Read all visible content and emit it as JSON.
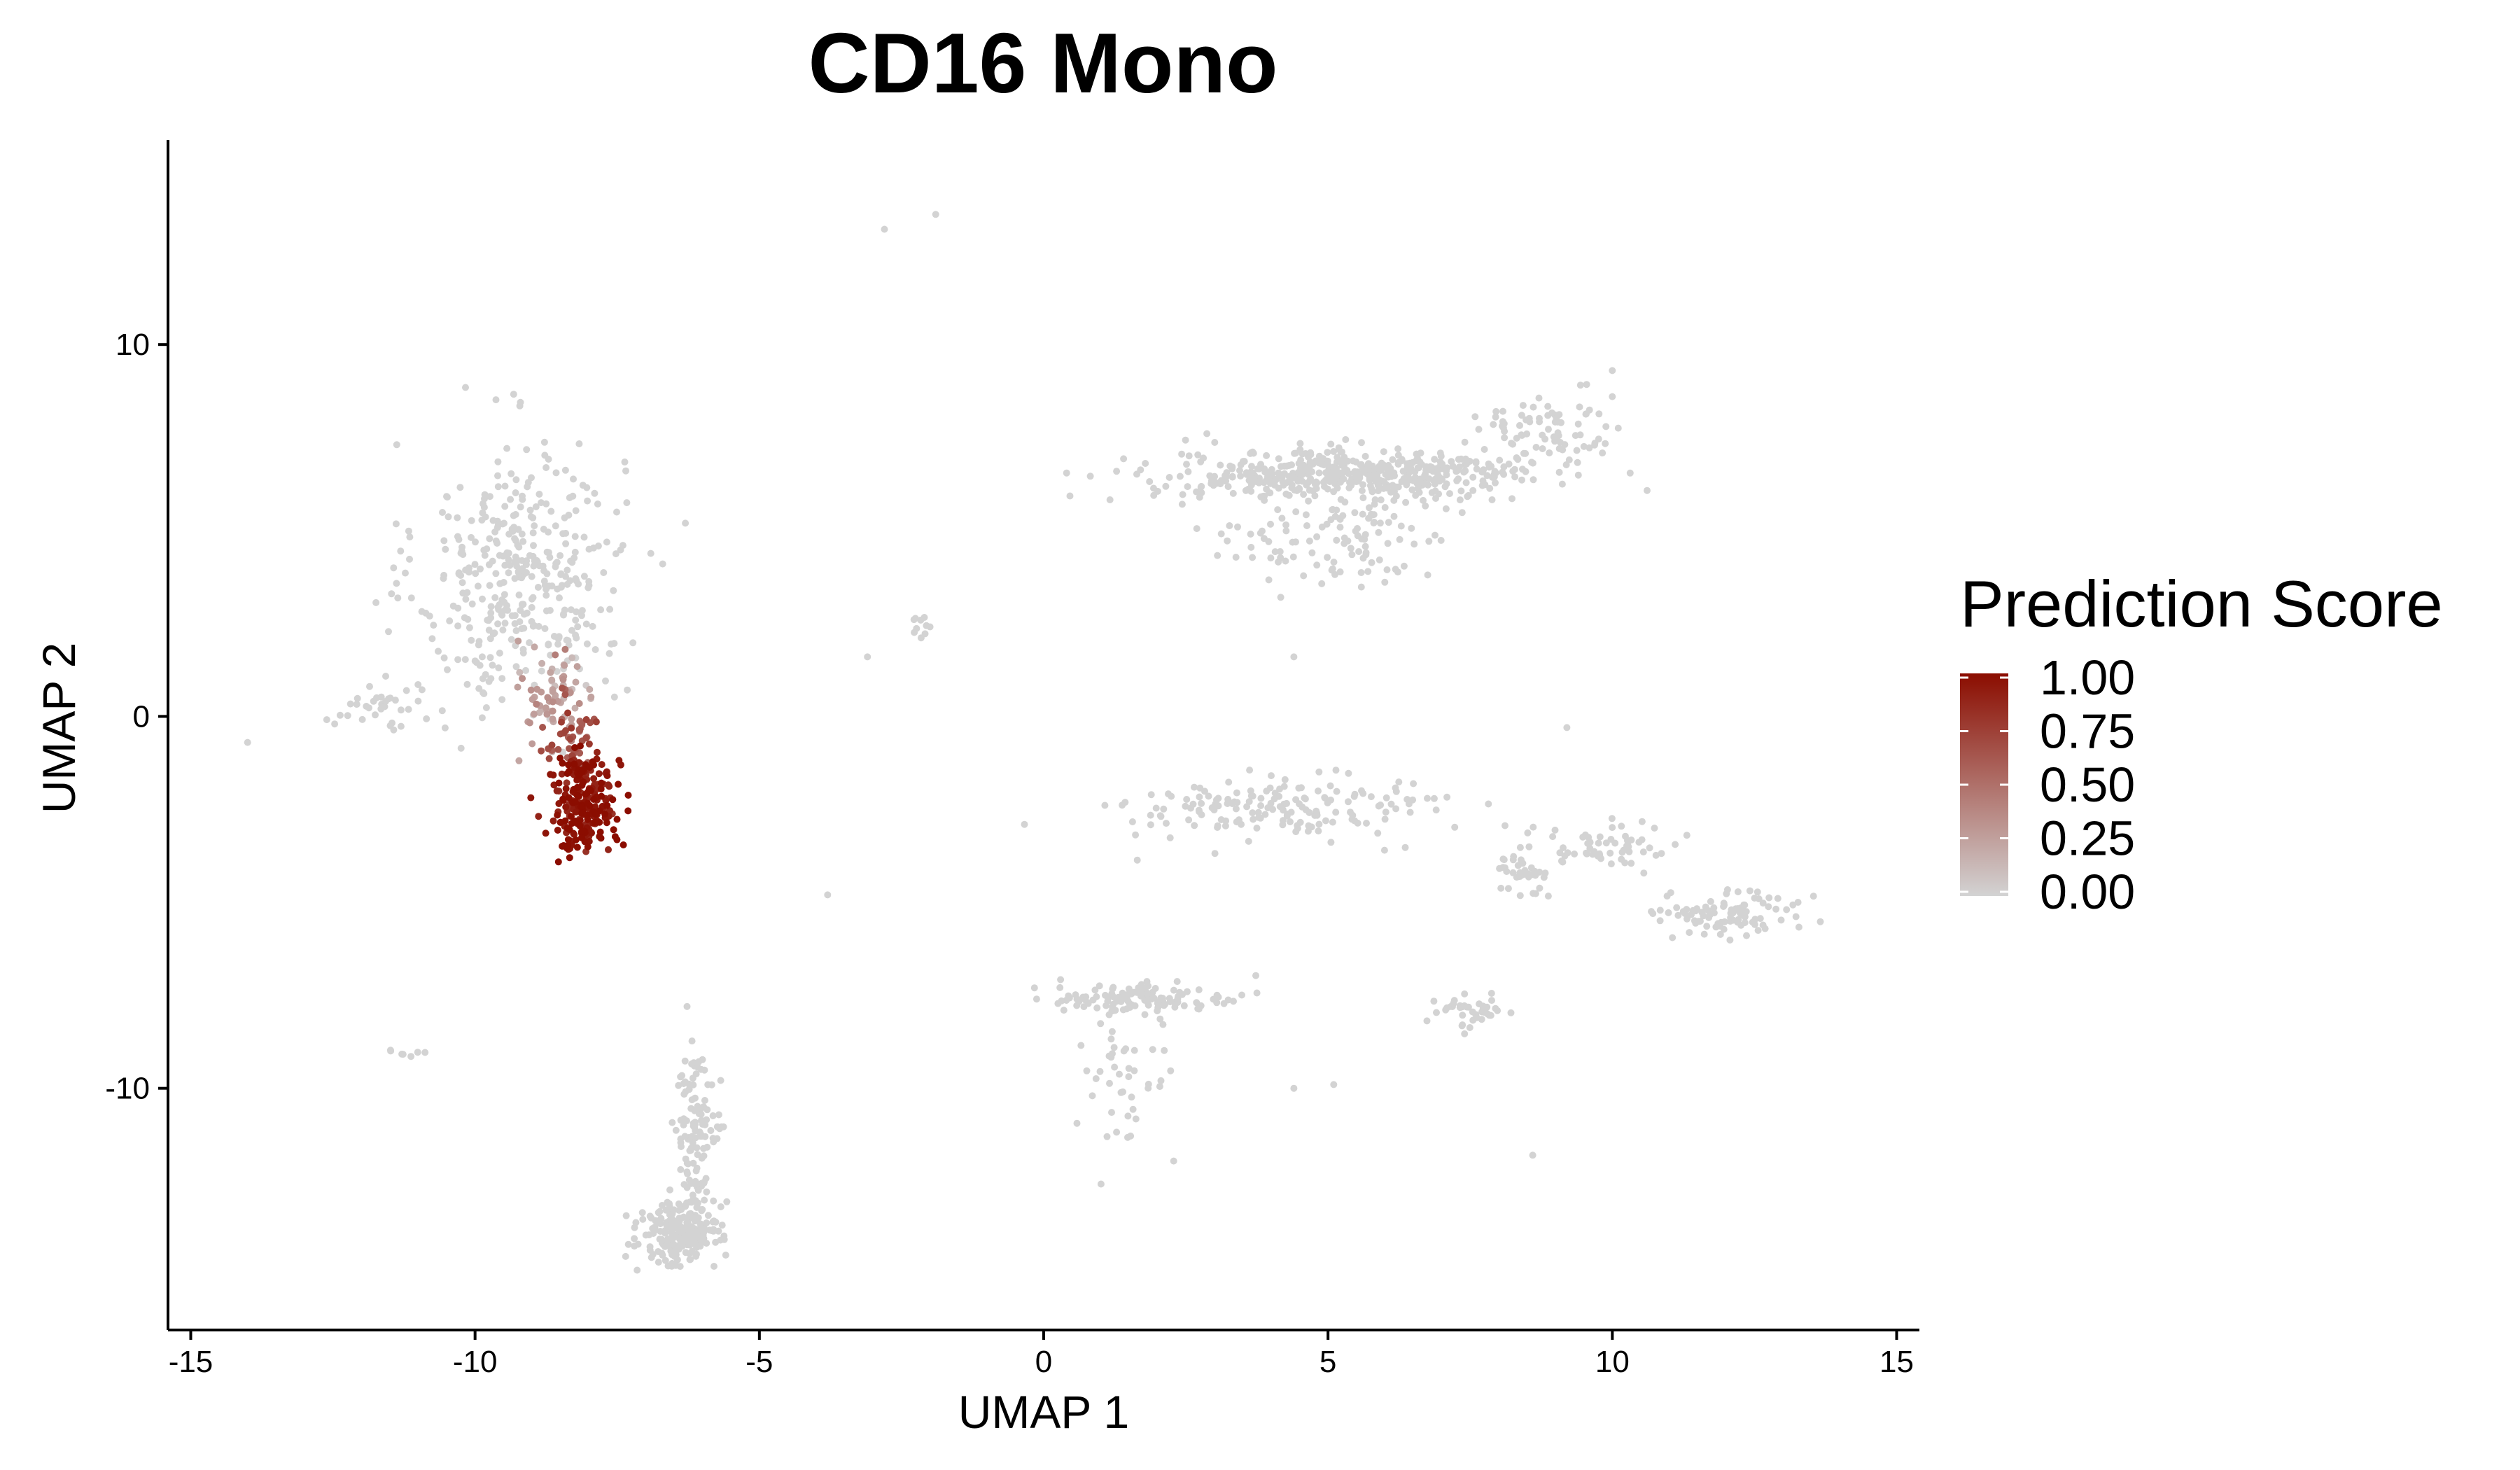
{
  "chart_data": {
    "type": "scatter",
    "title": "CD16 Mono",
    "xlabel": "UMAP 1",
    "ylabel": "UMAP 2",
    "xlim": [
      -15.4,
      15.4
    ],
    "ylim": [
      -16.5,
      15.5
    ],
    "xticks": [
      -15,
      -10,
      -5,
      0,
      5,
      10,
      15
    ],
    "xtick_labels": [
      "-15",
      "-10",
      "-5",
      "0",
      "5",
      "10",
      "15"
    ],
    "yticks": [
      10,
      0,
      -10
    ],
    "ytick_labels": [
      "10",
      "0",
      "-10"
    ],
    "grid": false,
    "legend": {
      "title": "Prediction Score",
      "placement": "right",
      "breaks": [
        1.0,
        0.75,
        0.5,
        0.25,
        0.0
      ],
      "labels": [
        "1.00",
        "0.75",
        "0.50",
        "0.25",
        "0.00"
      ],
      "low_color": "#d3d3d3",
      "high_color": "#8b0d00"
    },
    "colors": {
      "low": "#d3d3d3",
      "high": "#8b0d00",
      "axis": "#000000"
    },
    "series": [
      {
        "clusters": [
          {
            "center": [
              -9.2,
              3.8
            ],
            "spread": [
              0.9,
              1.8
            ],
            "n": 380,
            "score": 0
          },
          {
            "center": [
              -8.6,
              0.7
            ],
            "spread": [
              0.35,
              0.7
            ],
            "n": 70,
            "score": 0.25
          },
          {
            "center": [
              -8.3,
              -0.6
            ],
            "spread": [
              0.25,
              0.45
            ],
            "n": 45,
            "score": 0.65
          },
          {
            "center": [
              -8.1,
              -2.3
            ],
            "spread": [
              0.28,
              0.65
            ],
            "n": 240,
            "score": 0.97
          },
          {
            "center": [
              -11.8,
              0.3
            ],
            "spread": [
              0.5,
              0.3
            ],
            "n": 35,
            "score": 0
          },
          {
            "center": [
              -11.2,
              -9.05
            ],
            "spread": [
              0.25,
              0.05
            ],
            "n": 7,
            "score": 0
          },
          {
            "center": [
              -6.4,
              -13.9
            ],
            "spread": [
              0.35,
              0.4
            ],
            "n": 220,
            "score": 0
          },
          {
            "center": [
              -6.1,
              -11.2
            ],
            "spread": [
              0.18,
              1.3
            ],
            "n": 130,
            "score": 0
          },
          {
            "center": [
              5.3,
              6.5
            ],
            "spread": [
              1.6,
              0.35
            ],
            "n": 520,
            "score": 0
          },
          {
            "center": [
              5.0,
              4.8
            ],
            "spread": [
              1.1,
              0.7
            ],
            "n": 110,
            "score": 0
          },
          {
            "center": [
              8.8,
              7.6
            ],
            "spread": [
              0.6,
              0.5
            ],
            "n": 80,
            "score": 0
          },
          {
            "center": [
              -2.2,
              2.4
            ],
            "spread": [
              0.12,
              0.25
            ],
            "n": 10,
            "score": 0
          },
          {
            "center": [
              4.2,
              -2.5
            ],
            "spread": [
              1.4,
              0.45
            ],
            "n": 170,
            "score": 0
          },
          {
            "center": [
              8.4,
              -4.2
            ],
            "spread": [
              0.25,
              0.25
            ],
            "n": 35,
            "score": 0
          },
          {
            "center": [
              9.8,
              -3.4
            ],
            "spread": [
              0.7,
              0.35
            ],
            "n": 60,
            "score": 0
          },
          {
            "center": [
              12.0,
              -5.3
            ],
            "spread": [
              0.6,
              0.28
            ],
            "n": 95,
            "score": 0
          },
          {
            "center": [
              1.8,
              -7.6
            ],
            "spread": [
              0.8,
              0.2
            ],
            "n": 120,
            "score": 0
          },
          {
            "center": [
              1.4,
              -9.6
            ],
            "spread": [
              0.45,
              0.9
            ],
            "n": 45,
            "score": 0
          },
          {
            "center": [
              7.5,
              -7.9
            ],
            "spread": [
              0.35,
              0.2
            ],
            "n": 40,
            "score": 0
          }
        ],
        "singles": [
          {
            "x": -14,
            "y": -0.7,
            "score": 0
          },
          {
            "x": -2.8,
            "y": 13.1,
            "score": 0
          },
          {
            "x": -1.9,
            "y": 13.5,
            "score": 0
          },
          {
            "x": -3.1,
            "y": 1.6,
            "score": 0
          },
          {
            "x": -3.8,
            "y": -4.8,
            "score": 0
          },
          {
            "x": 4.4,
            "y": 1.6,
            "score": 0
          },
          {
            "x": 5.1,
            "y": -9.9,
            "score": 0
          },
          {
            "x": 4.4,
            "y": -10,
            "score": 0
          },
          {
            "x": 8.6,
            "y": -11.8,
            "score": 0
          },
          {
            "x": 9.2,
            "y": -0.3,
            "score": 0
          },
          {
            "x": 10,
            "y": 9.3,
            "score": 0
          },
          {
            "x": 10,
            "y": 8.6,
            "score": 0
          },
          {
            "x": -7.4,
            "y": 4.6,
            "score": 0
          },
          {
            "x": -6.7,
            "y": 4.1,
            "score": 0
          }
        ]
      }
    ]
  }
}
